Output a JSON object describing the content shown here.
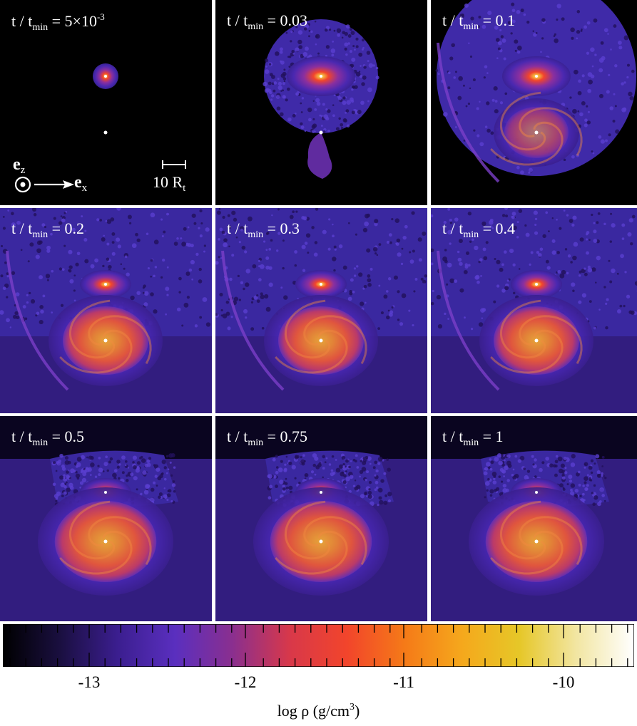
{
  "panels": [
    {
      "time_value": "5×10",
      "time_exponent": "-3",
      "stage": 0
    },
    {
      "time_value": "0.03",
      "stage": 1
    },
    {
      "time_value": "0.1",
      "stage": 2
    },
    {
      "time_value": "0.2",
      "stage": 3
    },
    {
      "time_value": "0.3",
      "stage": 4
    },
    {
      "time_value": "0.4",
      "stage": 5
    },
    {
      "time_value": "0.5",
      "stage": 6
    },
    {
      "time_value": "0.75",
      "stage": 7
    },
    {
      "time_value": "1",
      "stage": 8
    }
  ],
  "label_prefix": "t / t",
  "label_sub": "min",
  "label_equals": " = ",
  "axes": {
    "ez_symbol": "e",
    "ez_sub": "z",
    "ex_symbol": "e",
    "ex_sub": "x"
  },
  "scale_bar": {
    "value": "10 R",
    "sub": "t"
  },
  "colorbar": {
    "tick_labels": [
      "-13",
      "-12",
      "-11",
      "-10"
    ],
    "title_main": "log ρ (g/cm",
    "title_sup": "3",
    "title_end": ")",
    "stops": [
      "#000000",
      "#1a0f40",
      "#3b1e8f",
      "#5a2fbf",
      "#8a2f8f",
      "#d8384a",
      "#f2452b",
      "#f57a18",
      "#f5a81c",
      "#e6c728",
      "#f2e6a3",
      "#ffffff"
    ]
  }
}
